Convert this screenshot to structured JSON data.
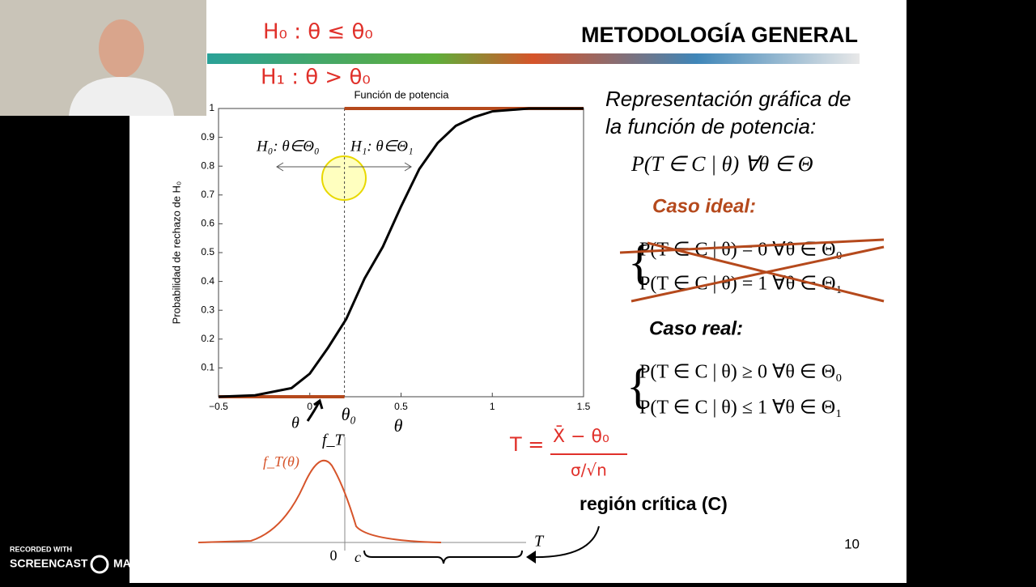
{
  "recorder": {
    "line1": "RECORDED WITH",
    "line2": "SCREENCAST",
    "line3": "MATIC"
  },
  "slide": {
    "title": "METODOLOGÍA GENERAL",
    "page_number": "10",
    "handwritten": {
      "h0": "H₀ : θ ≤ θ₀",
      "h1": "H₁ : θ > θ₀",
      "t_lhs": "T =",
      "t_num": "X̄ − θ₀",
      "t_den": "σ/√n"
    },
    "description": [
      "Representación gráfica de",
      "la función de potencia:"
    ],
    "formula": "P(T ∈ C | θ)   ∀θ ∈ Θ",
    "ideal": {
      "heading": "Caso ideal:",
      "lines": [
        "P(T ∈ C | θ) = 0    ∀θ ∈ Θ₀",
        "P(T ∈ C | θ) = 1    ∀θ ∈ Θ₁"
      ]
    },
    "real": {
      "heading": "Caso real:",
      "lines": [
        "P(T ∈ C | θ) ≥ 0    ∀θ ∈ Θ₀",
        "P(T ∈ C | θ) ≤ 1    ∀θ ∈ Θ₁"
      ]
    },
    "density": {
      "y_label": "f_T",
      "curve_label": "f_T(θ)",
      "zero": "0",
      "c": "c",
      "x_label": "T",
      "theta": "θ"
    },
    "critical_region": "región crítica (C)"
  },
  "chart_data": {
    "type": "line",
    "title": "Función de potencia",
    "ylabel": "Probabilidad de rechazo de H₀",
    "xlabel": "θ",
    "x": [
      -0.5,
      -0.3,
      -0.1,
      0,
      0.1,
      0.2,
      0.3,
      0.4,
      0.5,
      0.6,
      0.7,
      0.8,
      0.9,
      1.0,
      1.2,
      1.5
    ],
    "values": [
      0,
      0.005,
      0.03,
      0.08,
      0.17,
      0.27,
      0.41,
      0.52,
      0.66,
      0.79,
      0.88,
      0.94,
      0.97,
      0.99,
      1.0,
      1.0
    ],
    "color": "#000000",
    "xlim": [
      -0.5,
      1.5
    ],
    "ylim": [
      0,
      1
    ],
    "xticks": [
      {
        "value": -0.5,
        "label": "−0.5"
      },
      0,
      0.5,
      1,
      1.5
    ],
    "yticks": [
      0.1,
      0.2,
      0.3,
      0.4,
      0.5,
      0.6,
      0.7,
      0.8,
      0.9,
      1
    ],
    "annotations": {
      "theta0": "θ₀",
      "h0": "H₀: θ∈Θ₀",
      "h1": "H₁: θ∈Θ₁",
      "theta0_x": 0.19
    }
  }
}
